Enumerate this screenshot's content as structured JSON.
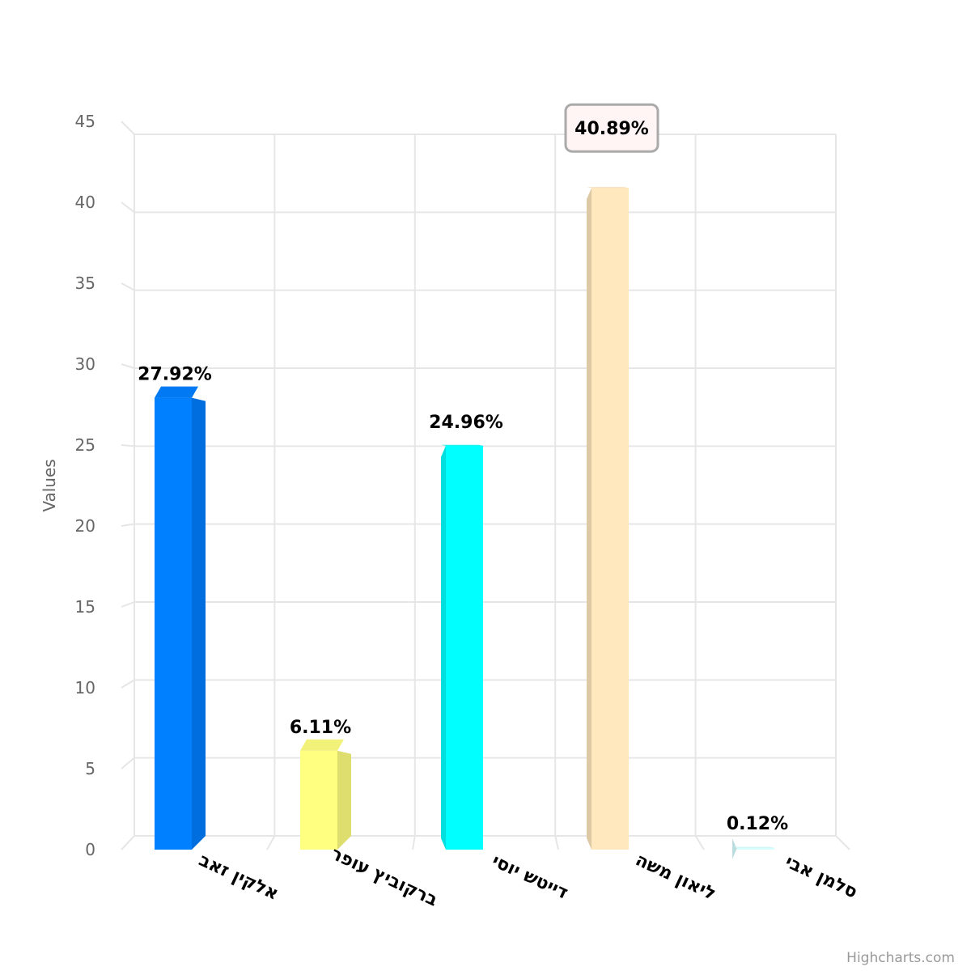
{
  "chart_data": {
    "type": "bar",
    "categories": [
      "אלקין זאב",
      "ברקוביץ עופר",
      "דייטש יוסי",
      "ליאון משה",
      "סלמן אבי"
    ],
    "values": [
      27.92,
      6.11,
      24.96,
      40.89,
      0.12
    ],
    "data_labels": [
      "27.92%",
      "6.11%",
      "24.96%",
      "40.89%",
      "0.12%"
    ],
    "colors": [
      "#007fff",
      "#ffff80",
      "#00ffff",
      "#ffe7be",
      "#d6feff"
    ],
    "ylabel": "Values",
    "ylim": [
      0,
      45
    ],
    "yticks": [
      0,
      5,
      10,
      15,
      20,
      25,
      30,
      35,
      40,
      45
    ],
    "highlighted_index": 3,
    "grid": true,
    "style": "3d-column"
  },
  "credit": "Highcharts.com"
}
